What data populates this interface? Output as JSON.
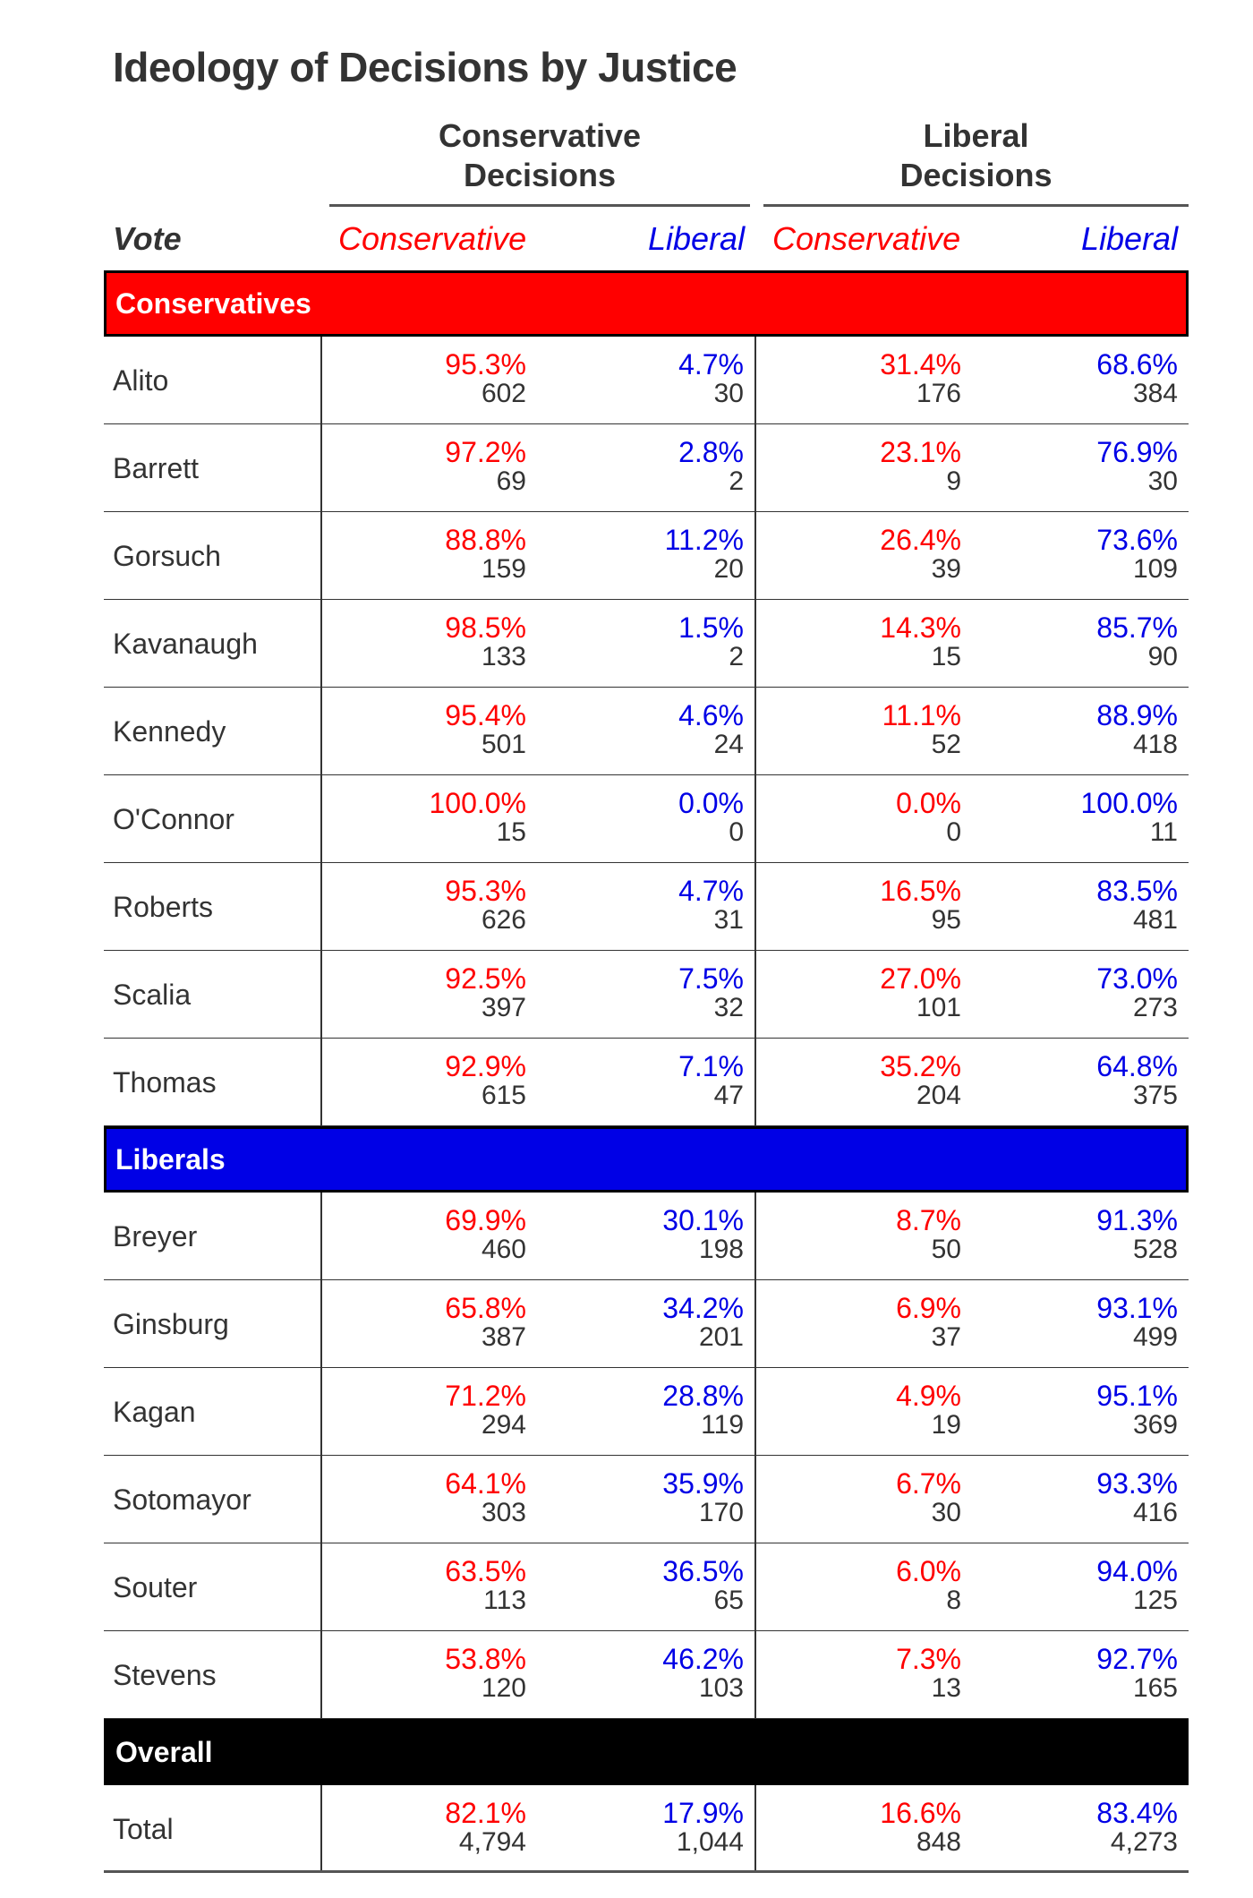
{
  "title": "Ideology of Decisions by Justice",
  "colors": {
    "conservative": "#ff0000",
    "liberal": "#0000e6",
    "overall": "#000000",
    "text": "#333333"
  },
  "header": {
    "group_conservative": [
      "Conservative",
      "Decisions"
    ],
    "group_liberal": [
      "Liberal",
      "Decisions"
    ],
    "vote_label": "Vote",
    "sub_conservative": "Conservative",
    "sub_liberal": "Liberal"
  },
  "chart_data": {
    "type": "table",
    "title": "Ideology of Decisions by Justice",
    "columns": [
      "Conservative Decisions / Conservative vote",
      "Conservative Decisions / Liberal vote",
      "Liberal Decisions / Conservative vote",
      "Liberal Decisions / Liberal vote"
    ],
    "sections": [
      {
        "name": "Conservatives",
        "color": "#ff0000",
        "rows": [
          {
            "justice": "Alito",
            "cells": [
              [
                "95.3%",
                "602"
              ],
              [
                "4.7%",
                "30"
              ],
              [
                "31.4%",
                "176"
              ],
              [
                "68.6%",
                "384"
              ]
            ]
          },
          {
            "justice": "Barrett",
            "cells": [
              [
                "97.2%",
                "69"
              ],
              [
                "2.8%",
                "2"
              ],
              [
                "23.1%",
                "9"
              ],
              [
                "76.9%",
                "30"
              ]
            ]
          },
          {
            "justice": "Gorsuch",
            "cells": [
              [
                "88.8%",
                "159"
              ],
              [
                "11.2%",
                "20"
              ],
              [
                "26.4%",
                "39"
              ],
              [
                "73.6%",
                "109"
              ]
            ]
          },
          {
            "justice": "Kavanaugh",
            "cells": [
              [
                "98.5%",
                "133"
              ],
              [
                "1.5%",
                "2"
              ],
              [
                "14.3%",
                "15"
              ],
              [
                "85.7%",
                "90"
              ]
            ]
          },
          {
            "justice": "Kennedy",
            "cells": [
              [
                "95.4%",
                "501"
              ],
              [
                "4.6%",
                "24"
              ],
              [
                "11.1%",
                "52"
              ],
              [
                "88.9%",
                "418"
              ]
            ]
          },
          {
            "justice": "O'Connor",
            "cells": [
              [
                "100.0%",
                "15"
              ],
              [
                "0.0%",
                "0"
              ],
              [
                "0.0%",
                "0"
              ],
              [
                "100.0%",
                "11"
              ]
            ]
          },
          {
            "justice": "Roberts",
            "cells": [
              [
                "95.3%",
                "626"
              ],
              [
                "4.7%",
                "31"
              ],
              [
                "16.5%",
                "95"
              ],
              [
                "83.5%",
                "481"
              ]
            ]
          },
          {
            "justice": "Scalia",
            "cells": [
              [
                "92.5%",
                "397"
              ],
              [
                "7.5%",
                "32"
              ],
              [
                "27.0%",
                "101"
              ],
              [
                "73.0%",
                "273"
              ]
            ]
          },
          {
            "justice": "Thomas",
            "cells": [
              [
                "92.9%",
                "615"
              ],
              [
                "7.1%",
                "47"
              ],
              [
                "35.2%",
                "204"
              ],
              [
                "64.8%",
                "375"
              ]
            ]
          }
        ]
      },
      {
        "name": "Liberals",
        "color": "#0000e6",
        "rows": [
          {
            "justice": "Breyer",
            "cells": [
              [
                "69.9%",
                "460"
              ],
              [
                "30.1%",
                "198"
              ],
              [
                "8.7%",
                "50"
              ],
              [
                "91.3%",
                "528"
              ]
            ]
          },
          {
            "justice": "Ginsburg",
            "cells": [
              [
                "65.8%",
                "387"
              ],
              [
                "34.2%",
                "201"
              ],
              [
                "6.9%",
                "37"
              ],
              [
                "93.1%",
                "499"
              ]
            ]
          },
          {
            "justice": "Kagan",
            "cells": [
              [
                "71.2%",
                "294"
              ],
              [
                "28.8%",
                "119"
              ],
              [
                "4.9%",
                "19"
              ],
              [
                "95.1%",
                "369"
              ]
            ]
          },
          {
            "justice": "Sotomayor",
            "cells": [
              [
                "64.1%",
                "303"
              ],
              [
                "35.9%",
                "170"
              ],
              [
                "6.7%",
                "30"
              ],
              [
                "93.3%",
                "416"
              ]
            ]
          },
          {
            "justice": "Souter",
            "cells": [
              [
                "63.5%",
                "113"
              ],
              [
                "36.5%",
                "65"
              ],
              [
                "6.0%",
                "8"
              ],
              [
                "94.0%",
                "125"
              ]
            ]
          },
          {
            "justice": "Stevens",
            "cells": [
              [
                "53.8%",
                "120"
              ],
              [
                "46.2%",
                "103"
              ],
              [
                "7.3%",
                "13"
              ],
              [
                "92.7%",
                "165"
              ]
            ]
          }
        ]
      },
      {
        "name": "Overall",
        "color": "#000000",
        "rows": [
          {
            "justice": "Total",
            "cells": [
              [
                "82.1%",
                "4,794"
              ],
              [
                "17.9%",
                "1,044"
              ],
              [
                "16.6%",
                "848"
              ],
              [
                "83.4%",
                "4,273"
              ]
            ]
          }
        ]
      }
    ]
  }
}
